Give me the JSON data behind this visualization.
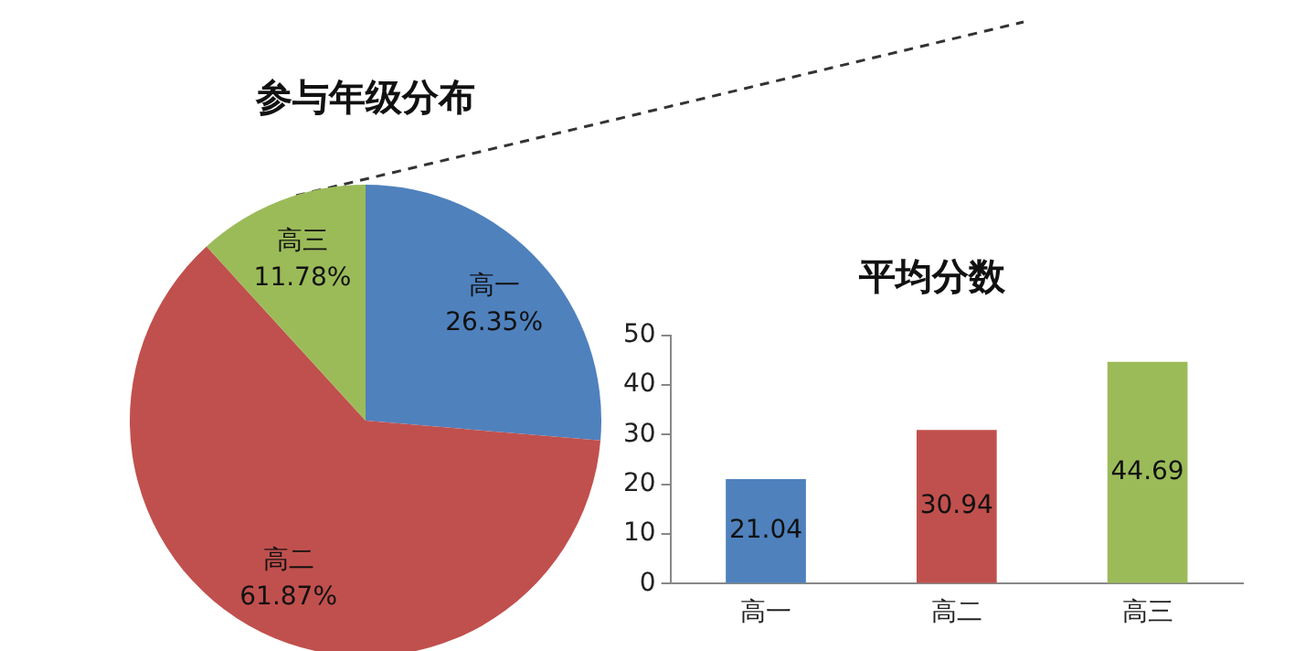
{
  "chart_data": [
    {
      "type": "pie",
      "title": "参与年级分布",
      "categories": [
        "高一",
        "高二",
        "高三"
      ],
      "values": [
        26.35,
        61.87,
        11.78
      ],
      "colors": [
        "#4f81bd",
        "#c0504d",
        "#9bbb59"
      ],
      "value_labels": [
        "26.35%",
        "61.87%",
        "11.78%"
      ],
      "legend": false
    },
    {
      "type": "bar",
      "title": "平均分数",
      "categories": [
        "高一",
        "高二",
        "高三"
      ],
      "values": [
        21.04,
        30.94,
        44.69
      ],
      "colors": [
        "#4f81bd",
        "#c0504d",
        "#9bbb59"
      ],
      "ylim": [
        0,
        50
      ],
      "yticks": [
        0,
        10,
        20,
        30,
        40,
        50
      ],
      "data_labels": true,
      "grid": false,
      "legend": false
    }
  ]
}
